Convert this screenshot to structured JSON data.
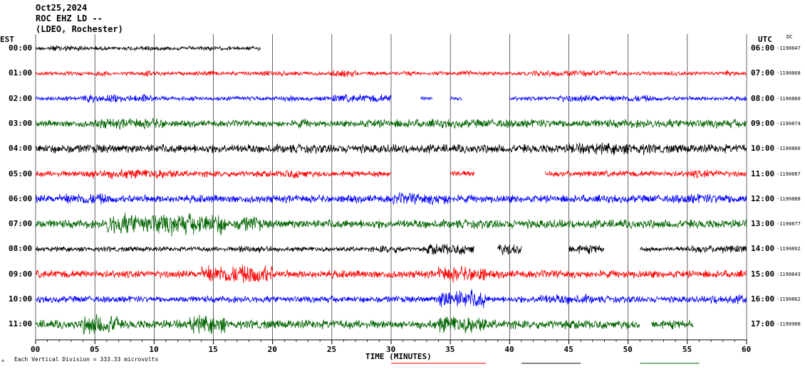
{
  "header": {
    "date": "Oct25,2024",
    "station": "ROC EHZ LD --",
    "network": "(LDEO, Rochester)"
  },
  "left_axis_label": "EST",
  "right_axis_label": "UTC",
  "dc_label": "DC",
  "xlabel": "TIME (MINUTES)",
  "scale_note": "Each Vertical Division =  333.33 microvolts",
  "colors": {
    "black": "#000000",
    "red": "#ff0000",
    "blue": "#0000ff",
    "green": "#006400",
    "grid": "#000000"
  },
  "chart_data": {
    "type": "line",
    "subtype": "helicorder",
    "x_unit": "minutes",
    "xlim": [
      0,
      60
    ],
    "x_ticks": [
      "00",
      "05",
      "10",
      "15",
      "20",
      "25",
      "30",
      "35",
      "40",
      "45",
      "50",
      "55",
      "60"
    ],
    "rows": [
      {
        "est": "00:00",
        "utc": "06:00",
        "dc": "-1190847",
        "color": "black",
        "segments": [
          [
            0,
            19
          ]
        ],
        "amplitude": 0.35,
        "bursts": [
          [
            1,
            4,
            1.6
          ],
          [
            8,
            10,
            1.4
          ],
          [
            14,
            15,
            1.3
          ]
        ]
      },
      {
        "est": "01:00",
        "utc": "07:00",
        "dc": "-1190868",
        "color": "red",
        "segments": [
          [
            0,
            60
          ]
        ],
        "amplitude": 0.35,
        "bursts": [
          [
            5,
            6,
            1.6
          ],
          [
            9,
            10,
            1.6
          ],
          [
            14,
            15,
            1.4
          ],
          [
            19,
            21,
            1.4
          ],
          [
            25,
            27,
            1.8
          ],
          [
            31,
            32,
            1.4
          ],
          [
            36,
            37,
            1.6
          ],
          [
            42,
            49,
            1.6
          ],
          [
            53,
            54,
            1.4
          ],
          [
            58,
            59,
            1.6
          ]
        ]
      },
      {
        "est": "02:00",
        "utc": "08:00",
        "dc": "-1190860",
        "color": "blue",
        "segments": [
          [
            0,
            30
          ],
          [
            32.5,
            33.5
          ],
          [
            35,
            36
          ],
          [
            40,
            60
          ]
        ],
        "amplitude": 0.4,
        "bursts": [
          [
            4,
            10,
            1.8
          ],
          [
            21,
            22,
            1.4
          ],
          [
            25,
            30,
            1.8
          ],
          [
            44,
            52,
            1.6
          ]
        ]
      },
      {
        "est": "03:00",
        "utc": "09:00",
        "dc": "-1190874",
        "color": "green",
        "segments": [
          [
            0,
            60
          ]
        ],
        "amplitude": 0.6,
        "bursts": [
          [
            5,
            11,
            1.6
          ],
          [
            22,
            23,
            1.4
          ],
          [
            27,
            60,
            1.3
          ]
        ]
      },
      {
        "est": "04:00",
        "utc": "10:00",
        "dc": "-1190866",
        "color": "black",
        "segments": [
          [
            0,
            60
          ]
        ],
        "amplitude": 0.8,
        "bursts": [
          [
            45,
            52,
            1.3
          ]
        ]
      },
      {
        "est": "05:00",
        "utc": "11:00",
        "dc": "-1190887",
        "color": "red",
        "segments": [
          [
            0,
            30
          ],
          [
            35,
            37
          ],
          [
            43,
            60
          ]
        ],
        "amplitude": 0.55,
        "bursts": [
          [
            4,
            12,
            1.6
          ],
          [
            21,
            23,
            1.5
          ],
          [
            55,
            58,
            1.4
          ]
        ]
      },
      {
        "est": "06:00",
        "utc": "12:00",
        "dc": "-1190888",
        "color": "blue",
        "segments": [
          [
            0,
            60
          ]
        ],
        "amplitude": 0.7,
        "bursts": [
          [
            2,
            6,
            1.5
          ],
          [
            30,
            35,
            1.5
          ],
          [
            54,
            60,
            1.3
          ]
        ]
      },
      {
        "est": "07:00",
        "utc": "13:00",
        "dc": "-1190877",
        "color": "green",
        "segments": [
          [
            0,
            60
          ]
        ],
        "amplitude": 0.8,
        "bursts": [
          [
            6,
            16,
            2.4
          ],
          [
            17,
            19,
            1.8
          ]
        ]
      },
      {
        "est": "08:00",
        "utc": "14:00",
        "dc": "-1190892",
        "color": "black",
        "segments": [
          [
            0,
            37
          ],
          [
            39,
            41
          ],
          [
            45,
            48
          ],
          [
            51,
            60
          ]
        ],
        "amplitude": 0.45,
        "bursts": [
          [
            17,
            20,
            1.6
          ],
          [
            29,
            31,
            1.6
          ],
          [
            33,
            37,
            2.2
          ],
          [
            39,
            41,
            2.4
          ],
          [
            45,
            48,
            1.8
          ],
          [
            55,
            60,
            1.6
          ]
        ]
      },
      {
        "est": "09:00",
        "utc": "15:00",
        "dc": "-1190843",
        "color": "red",
        "segments": [
          [
            0,
            60
          ]
        ],
        "amplitude": 0.7,
        "bursts": [
          [
            14,
            20,
            2.4
          ],
          [
            34,
            38,
            2.0
          ]
        ]
      },
      {
        "est": "10:00",
        "utc": "16:00",
        "dc": "-1190862",
        "color": "blue",
        "segments": [
          [
            0,
            60
          ]
        ],
        "amplitude": 0.6,
        "bursts": [
          [
            34,
            38,
            2.8
          ],
          [
            42,
            47,
            1.5
          ],
          [
            57,
            60,
            1.4
          ]
        ]
      },
      {
        "est": "11:00",
        "utc": "17:00",
        "dc": "-1190900",
        "color": "green",
        "segments": [
          [
            0,
            51
          ],
          [
            52,
            55.5
          ]
        ],
        "amplitude": 0.8,
        "bursts": [
          [
            4,
            7,
            2.4
          ],
          [
            13,
            16,
            2.0
          ],
          [
            34,
            38,
            2.0
          ]
        ]
      }
    ]
  }
}
